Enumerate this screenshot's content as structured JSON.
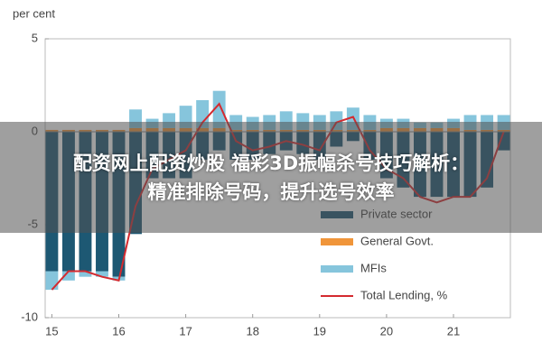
{
  "chart_data": {
    "type": "stacked-bar-line",
    "y_label": "per cent",
    "x": [
      15.0,
      15.25,
      15.5,
      15.75,
      16.0,
      16.25,
      16.5,
      16.75,
      17.0,
      17.25,
      17.5,
      17.75,
      18.0,
      18.25,
      18.5,
      18.75,
      19.0,
      19.25,
      19.5,
      19.75,
      20.0,
      20.25,
      20.5,
      20.75,
      21.0,
      21.25,
      21.5,
      21.75
    ],
    "xlim": [
      14.9,
      21.85
    ],
    "xticks": [
      15,
      16,
      17,
      18,
      19,
      20,
      21
    ],
    "ylim": [
      -10,
      5
    ],
    "yticks": [
      -10,
      -5,
      0,
      5
    ],
    "legend": "lower right",
    "series": [
      {
        "name": "Private sector",
        "color": "#1d5873",
        "kind": "bar",
        "values": [
          -7.5,
          -7.5,
          -7.5,
          -7.5,
          -7.8,
          -5.5,
          -2.5,
          -2.5,
          -2.5,
          -1.5,
          -1.0,
          -1.5,
          -1.5,
          -1.2,
          -1.0,
          -1.2,
          -1.5,
          -0.8,
          -0.5,
          -1.5,
          -2.5,
          -3.0,
          -3.5,
          -3.5,
          -3.5,
          -3.5,
          -3.0,
          -1.0
        ]
      },
      {
        "name": "General Govt.",
        "color": "#f0953a",
        "kind": "bar",
        "values": [
          0.1,
          0.1,
          0.1,
          0.1,
          0.1,
          0.2,
          0.2,
          0.2,
          0.2,
          0.2,
          0.2,
          0.1,
          0.1,
          0.1,
          0.1,
          0.1,
          0.1,
          0.1,
          0.1,
          0.1,
          0.2,
          0.2,
          0.2,
          0.2,
          0.2,
          0.1,
          0.1,
          0.1
        ]
      },
      {
        "name": "MFIs",
        "color": "#86c5dc",
        "kind": "bar",
        "values": [
          -1.0,
          -0.5,
          -0.3,
          -0.3,
          -0.2,
          1.0,
          0.5,
          0.8,
          1.2,
          1.5,
          2.0,
          0.8,
          0.7,
          0.8,
          1.0,
          0.9,
          0.8,
          1.0,
          1.2,
          0.8,
          0.5,
          0.5,
          0.3,
          0.3,
          0.5,
          0.8,
          0.8,
          0.8
        ]
      },
      {
        "name": "Total Lending, %",
        "color": "#d42a2f",
        "kind": "line",
        "values": [
          -8.5,
          -7.5,
          -7.5,
          -7.8,
          -8.0,
          -4.0,
          -2.0,
          -1.5,
          -1.0,
          0.5,
          1.5,
          -0.5,
          -1.0,
          -0.8,
          -0.5,
          -0.7,
          -1.0,
          0.5,
          0.8,
          -1.0,
          -2.0,
          -2.5,
          -3.5,
          -3.8,
          -3.5,
          -3.5,
          -2.5,
          0.0
        ]
      }
    ]
  },
  "overlay_text": [
    "配资网上配资炒股 福彩3D振幅杀号技巧解析：",
    "精准排除号码，提升选号效率"
  ]
}
